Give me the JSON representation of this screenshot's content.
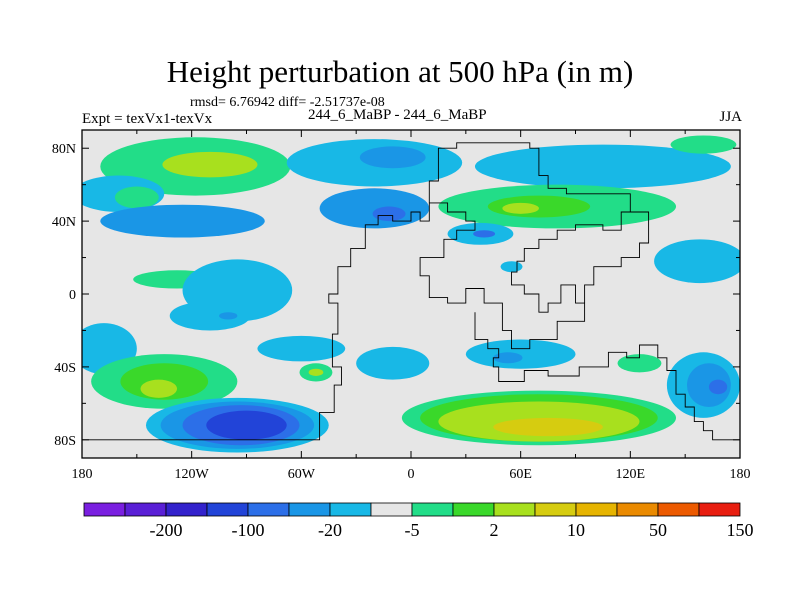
{
  "chart_data": {
    "type": "heatmap",
    "title": "Height perturbation at 500 hPa (in m)",
    "stats_line": "rmsd= 6.76942 diff= -2.51737e-08",
    "left_label": "Expt = texVx1-texVx",
    "center_label": "244_6_MaBP - 244_6_MaBP",
    "right_label": "JJA",
    "x_range": [
      -180,
      180
    ],
    "y_range": [
      -90,
      90
    ],
    "x_ticks": [
      {
        "value": -180,
        "label": "180"
      },
      {
        "value": -120,
        "label": "120W"
      },
      {
        "value": -60,
        "label": "60W"
      },
      {
        "value": 0,
        "label": "0"
      },
      {
        "value": 60,
        "label": "60E"
      },
      {
        "value": 120,
        "label": "120E"
      },
      {
        "value": 180,
        "label": "180"
      }
    ],
    "y_ticks": [
      {
        "value": 80,
        "label": "80N"
      },
      {
        "value": 40,
        "label": "40N"
      },
      {
        "value": 0,
        "label": "0"
      },
      {
        "value": -40,
        "label": "40S"
      },
      {
        "value": -80,
        "label": "80S"
      }
    ],
    "colorbar": {
      "colors": [
        "#7a1fe0",
        "#5a1fd6",
        "#3322cc",
        "#2244d8",
        "#2c6fe8",
        "#1a96e6",
        "#18b8e6",
        "#e6e6e6",
        "#22dd88",
        "#3ad82a",
        "#a8e01e",
        "#d6cc10",
        "#e6b400",
        "#ea8a00",
        "#ec5a00",
        "#e81e10"
      ],
      "labels": [
        {
          "after_box": 2,
          "text": "-200"
        },
        {
          "after_box": 4,
          "text": "-100"
        },
        {
          "after_box": 6,
          "text": "-20"
        },
        {
          "after_box": 8,
          "text": "-5"
        },
        {
          "after_box": 10,
          "text": "2"
        },
        {
          "after_box": 12,
          "text": "10"
        },
        {
          "after_box": 14,
          "text": "50"
        },
        {
          "after_box": 16,
          "text": "150"
        }
      ]
    },
    "background_color": "#e6e6e6",
    "regions": [
      {
        "name": "n-pacific-green",
        "color": "#22dd88",
        "lon": -118,
        "lat": 70,
        "rx": 52,
        "ry": 16
      },
      {
        "name": "n-pacific-lime",
        "color": "#a8e01e",
        "lon": -110,
        "lat": 71,
        "rx": 26,
        "ry": 7
      },
      {
        "name": "n-pacific-cyan",
        "color": "#18b8e6",
        "lon": -160,
        "lat": 55,
        "rx": 25,
        "ry": 10
      },
      {
        "name": "n-pacific-green-west",
        "color": "#22dd88",
        "lon": -150,
        "lat": 53,
        "rx": 12,
        "ry": 6
      },
      {
        "name": "n-atlantic-cyan",
        "color": "#18b8e6",
        "lon": -20,
        "lat": 72,
        "rx": 48,
        "ry": 13
      },
      {
        "name": "n-atlantic-blue",
        "color": "#1a96e6",
        "lon": -10,
        "lat": 75,
        "rx": 18,
        "ry": 6
      },
      {
        "name": "ne-cyan",
        "color": "#18b8e6",
        "lon": 105,
        "lat": 70,
        "rx": 70,
        "ry": 12
      },
      {
        "name": "arctic-green",
        "color": "#22dd88",
        "lon": 160,
        "lat": 82,
        "rx": 18,
        "ry": 5
      },
      {
        "name": "mid-lat-blue",
        "color": "#1a96e6",
        "lon": -20,
        "lat": 47,
        "rx": 30,
        "ry": 11
      },
      {
        "name": "mid-lat-blue-dark",
        "color": "#2c6fe8",
        "lon": -12,
        "lat": 44,
        "rx": 9,
        "ry": 4
      },
      {
        "name": "n-pac-band-blue",
        "color": "#1a96e6",
        "lon": -125,
        "lat": 40,
        "rx": 45,
        "ry": 9
      },
      {
        "name": "asia-green",
        "color": "#22dd88",
        "lon": 80,
        "lat": 48,
        "rx": 65,
        "ry": 12
      },
      {
        "name": "asia-green-core",
        "color": "#3ad82a",
        "lon": 70,
        "lat": 48,
        "rx": 28,
        "ry": 6
      },
      {
        "name": "asia-lime",
        "color": "#a8e01e",
        "lon": 60,
        "lat": 47,
        "rx": 10,
        "ry": 3
      },
      {
        "name": "tibet-cyan",
        "color": "#18b8e6",
        "lon": 38,
        "lat": 33,
        "rx": 18,
        "ry": 6
      },
      {
        "name": "tibet-blue",
        "color": "#2c6fe8",
        "lon": 40,
        "lat": 33,
        "rx": 6,
        "ry": 2
      },
      {
        "name": "pacific-cyan",
        "color": "#18b8e6",
        "lon": 158,
        "lat": 18,
        "rx": 25,
        "ry": 12
      },
      {
        "name": "asia-cyan-small",
        "color": "#18b8e6",
        "lon": 55,
        "lat": 15,
        "rx": 6,
        "ry": 3
      },
      {
        "name": "e-pac-green",
        "color": "#22dd88",
        "lon": -128,
        "lat": 8,
        "rx": 24,
        "ry": 5
      },
      {
        "name": "trop-cyan",
        "color": "#18b8e6",
        "lon": -95,
        "lat": 2,
        "rx": 30,
        "ry": 17
      },
      {
        "name": "trop-cyan-s",
        "color": "#18b8e6",
        "lon": -110,
        "lat": -12,
        "rx": 22,
        "ry": 8
      },
      {
        "name": "trop-blue",
        "color": "#1a96e6",
        "lon": -100,
        "lat": -12,
        "rx": 5,
        "ry": 2
      },
      {
        "name": "s-pac-cyan",
        "color": "#18b8e6",
        "lon": -168,
        "lat": -30,
        "rx": 18,
        "ry": 14
      },
      {
        "name": "s-pac-green",
        "color": "#22dd88",
        "lon": -135,
        "lat": -48,
        "rx": 40,
        "ry": 15
      },
      {
        "name": "s-pac-lime",
        "color": "#a8e01e",
        "lon": -135,
        "lat": -52,
        "rx": 14,
        "ry": 6
      },
      {
        "name": "s-pac-green-core",
        "color": "#3ad82a",
        "lon": -135,
        "lat": -48,
        "rx": 24,
        "ry": 10
      },
      {
        "name": "s-pac-lime-core",
        "color": "#a8e01e",
        "lon": -138,
        "lat": -52,
        "rx": 10,
        "ry": 5
      },
      {
        "name": "s-pac-cyan-small",
        "color": "#18b8e6",
        "lon": -60,
        "lat": -30,
        "rx": 24,
        "ry": 7
      },
      {
        "name": "s-pac-green-small",
        "color": "#22dd88",
        "lon": -52,
        "lat": -43,
        "rx": 9,
        "ry": 5
      },
      {
        "name": "s-pac-lime-small",
        "color": "#a8e01e",
        "lon": -52,
        "lat": -43,
        "rx": 4,
        "ry": 2
      },
      {
        "name": "s-pac-blue-1",
        "color": "#18b8e6",
        "lon": -95,
        "lat": -72,
        "rx": 50,
        "ry": 15
      },
      {
        "name": "s-pac-blue-2",
        "color": "#1a96e6",
        "lon": -95,
        "lat": -72,
        "rx": 42,
        "ry": 13
      },
      {
        "name": "s-pac-blue-3",
        "color": "#2c6fe8",
        "lon": -93,
        "lat": -72,
        "rx": 32,
        "ry": 11
      },
      {
        "name": "s-pac-blue-4",
        "color": "#2244d8",
        "lon": -90,
        "lat": -72,
        "rx": 22,
        "ry": 8
      },
      {
        "name": "s-atl-cyan",
        "color": "#18b8e6",
        "lon": -10,
        "lat": -38,
        "rx": 20,
        "ry": 9
      },
      {
        "name": "s-ind-cyan",
        "color": "#18b8e6",
        "lon": 60,
        "lat": -33,
        "rx": 30,
        "ry": 8
      },
      {
        "name": "s-ind-blue",
        "color": "#1a96e6",
        "lon": 53,
        "lat": -35,
        "rx": 8,
        "ry": 3
      },
      {
        "name": "s-ocean-green",
        "color": "#22dd88",
        "lon": 70,
        "lat": -68,
        "rx": 75,
        "ry": 15
      },
      {
        "name": "s-ocean-lgreen",
        "color": "#3ad82a",
        "lon": 70,
        "lat": -68,
        "rx": 65,
        "ry": 13
      },
      {
        "name": "s-ocean-lime",
        "color": "#a8e01e",
        "lon": 70,
        "lat": -70,
        "rx": 55,
        "ry": 11
      },
      {
        "name": "s-ocean-yellow",
        "color": "#d6cc10",
        "lon": 75,
        "lat": -73,
        "rx": 30,
        "ry": 5
      },
      {
        "name": "se-pac-cyan",
        "color": "#18b8e6",
        "lon": 160,
        "lat": -50,
        "rx": 20,
        "ry": 18
      },
      {
        "name": "se-pac-blue",
        "color": "#1a96e6",
        "lon": 163,
        "lat": -50,
        "rx": 12,
        "ry": 12
      },
      {
        "name": "se-pac-blue-dark",
        "color": "#2c6fe8",
        "lon": 168,
        "lat": -51,
        "rx": 5,
        "ry": 4
      },
      {
        "name": "se-green",
        "color": "#22dd88",
        "lon": 125,
        "lat": -38,
        "rx": 12,
        "ry": 5
      }
    ],
    "coastlines": [
      {
        "name": "continent-outline-1",
        "points": [
          [
            -180,
            -80
          ],
          [
            -50,
            -80
          ],
          [
            -50,
            -65
          ],
          [
            -42,
            -65
          ],
          [
            -42,
            -50
          ],
          [
            -38,
            -50
          ],
          [
            -38,
            -40
          ],
          [
            -43,
            -40
          ],
          [
            -43,
            -22
          ],
          [
            -40,
            -22
          ],
          [
            -40,
            -5
          ],
          [
            -45,
            -5
          ],
          [
            -45,
            0
          ],
          [
            -40,
            0
          ],
          [
            -40,
            15
          ],
          [
            -33,
            15
          ],
          [
            -33,
            25
          ],
          [
            -25,
            25
          ],
          [
            -25,
            38
          ],
          [
            -18,
            38
          ],
          [
            -18,
            43
          ],
          [
            -10,
            43
          ],
          [
            -10,
            40
          ],
          [
            0,
            40
          ],
          [
            0,
            45
          ],
          [
            5,
            45
          ],
          [
            5,
            40
          ],
          [
            10,
            40
          ],
          [
            10,
            62
          ],
          [
            15,
            62
          ],
          [
            15,
            80
          ],
          [
            25,
            80
          ],
          [
            25,
            83
          ],
          [
            65,
            83
          ],
          [
            65,
            80
          ],
          [
            70,
            80
          ],
          [
            70,
            65
          ],
          [
            75,
            65
          ],
          [
            75,
            58
          ],
          [
            85,
            58
          ],
          [
            85,
            55
          ],
          [
            120,
            55
          ],
          [
            120,
            45
          ],
          [
            115,
            45
          ],
          [
            115,
            35
          ],
          [
            105,
            35
          ],
          [
            105,
            38
          ],
          [
            90,
            38
          ],
          [
            90,
            35
          ],
          [
            80,
            35
          ],
          [
            80,
            30
          ],
          [
            70,
            30
          ],
          [
            70,
            25
          ],
          [
            62,
            25
          ],
          [
            62,
            18
          ],
          [
            58,
            18
          ],
          [
            58,
            12
          ],
          [
            55,
            12
          ],
          [
            55,
            5
          ],
          [
            62,
            5
          ],
          [
            62,
            0
          ],
          [
            70,
            0
          ],
          [
            70,
            -10
          ],
          [
            75,
            -10
          ],
          [
            75,
            -5
          ],
          [
            82,
            -5
          ],
          [
            82,
            5
          ],
          [
            90,
            5
          ],
          [
            90,
            -5
          ],
          [
            95,
            -5
          ],
          [
            95,
            -15
          ],
          [
            80,
            -15
          ],
          [
            80,
            -25
          ],
          [
            65,
            -25
          ],
          [
            65,
            -30
          ],
          [
            55,
            -30
          ],
          [
            55,
            -20
          ],
          [
            50,
            -20
          ],
          [
            50,
            -5
          ],
          [
            40,
            -5
          ],
          [
            40,
            3
          ],
          [
            30,
            3
          ],
          [
            30,
            -5
          ],
          [
            20,
            -5
          ],
          [
            20,
            -2
          ],
          [
            10,
            -2
          ],
          [
            10,
            10
          ],
          [
            5,
            10
          ],
          [
            5,
            20
          ],
          [
            18,
            20
          ],
          [
            18,
            30
          ],
          [
            25,
            30
          ],
          [
            25,
            35
          ],
          [
            35,
            35
          ],
          [
            35,
            40
          ],
          [
            30,
            40
          ],
          [
            30,
            45
          ],
          [
            20,
            45
          ],
          [
            20,
            50
          ],
          [
            10,
            50
          ]
        ]
      },
      {
        "name": "continent-outline-2",
        "points": [
          [
            35,
            -10
          ],
          [
            35,
            -25
          ],
          [
            42,
            -25
          ],
          [
            42,
            -30
          ],
          [
            48,
            -30
          ],
          [
            48,
            -35
          ],
          [
            45,
            -35
          ],
          [
            45,
            -40
          ],
          [
            48,
            -40
          ],
          [
            48,
            -48
          ],
          [
            62,
            -48
          ],
          [
            62,
            -42
          ],
          [
            75,
            -42
          ],
          [
            75,
            -45
          ],
          [
            92,
            -45
          ],
          [
            92,
            -40
          ],
          [
            108,
            -40
          ],
          [
            108,
            -32
          ],
          [
            118,
            -32
          ],
          [
            118,
            -35
          ],
          [
            125,
            -35
          ],
          [
            125,
            -28
          ],
          [
            135,
            -28
          ],
          [
            135,
            -35
          ],
          [
            140,
            -35
          ],
          [
            140,
            -42
          ],
          [
            145,
            -42
          ],
          [
            145,
            -55
          ],
          [
            150,
            -55
          ],
          [
            150,
            -62
          ],
          [
            155,
            -62
          ],
          [
            155,
            -70
          ],
          [
            160,
            -70
          ],
          [
            160,
            -75
          ],
          [
            165,
            -75
          ],
          [
            165,
            -80
          ],
          [
            180,
            -80
          ]
        ]
      },
      {
        "name": "asia-east-outline",
        "points": [
          [
            120,
            45
          ],
          [
            130,
            45
          ],
          [
            130,
            28
          ],
          [
            125,
            28
          ],
          [
            125,
            20
          ],
          [
            115,
            20
          ],
          [
            115,
            15
          ],
          [
            100,
            15
          ],
          [
            100,
            5
          ],
          [
            95,
            5
          ],
          [
            95,
            -5
          ]
        ]
      }
    ]
  }
}
